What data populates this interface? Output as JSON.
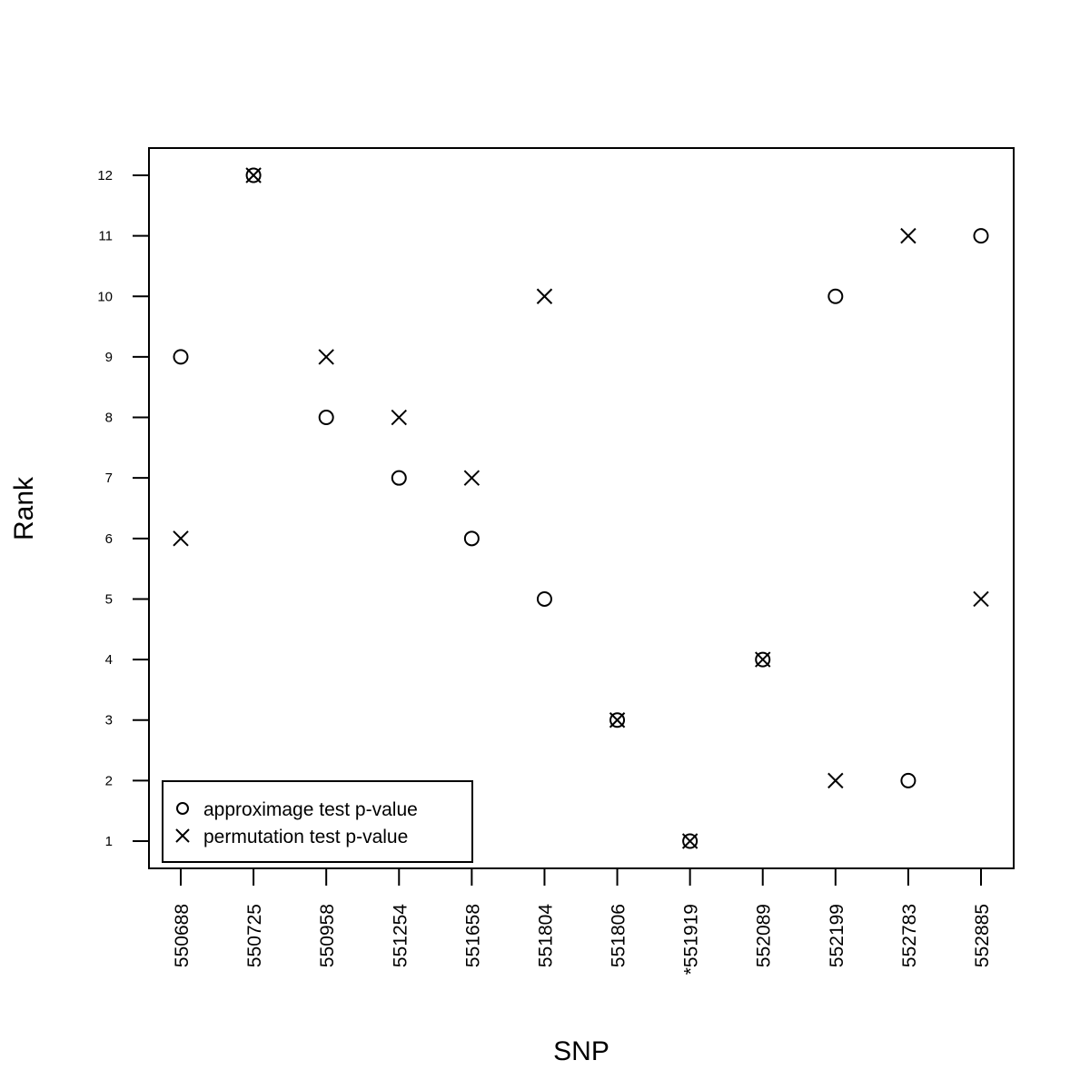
{
  "chart_data": {
    "type": "scatter",
    "title": "",
    "xlabel": "SNP",
    "ylabel": "Rank",
    "categories": [
      "550688",
      "550725",
      "550958",
      "551254",
      "551658",
      "551804",
      "551806",
      "*551919",
      "552089",
      "552199",
      "552783",
      "552885"
    ],
    "yticks": [
      1,
      2,
      3,
      4,
      5,
      6,
      7,
      8,
      9,
      10,
      11,
      12
    ],
    "ylim": [
      0.55,
      12.45
    ],
    "grid": false,
    "legend_position": "bottom-left",
    "series": [
      {
        "name": "approximage test p-value",
        "marker": "circle",
        "values": [
          9,
          12,
          8,
          7,
          6,
          5,
          3,
          1,
          4,
          10,
          2,
          11
        ]
      },
      {
        "name": "permutation test p-value",
        "marker": "cross",
        "values": [
          6,
          12,
          9,
          8,
          7,
          10,
          3,
          1,
          4,
          2,
          11,
          5
        ]
      }
    ]
  }
}
